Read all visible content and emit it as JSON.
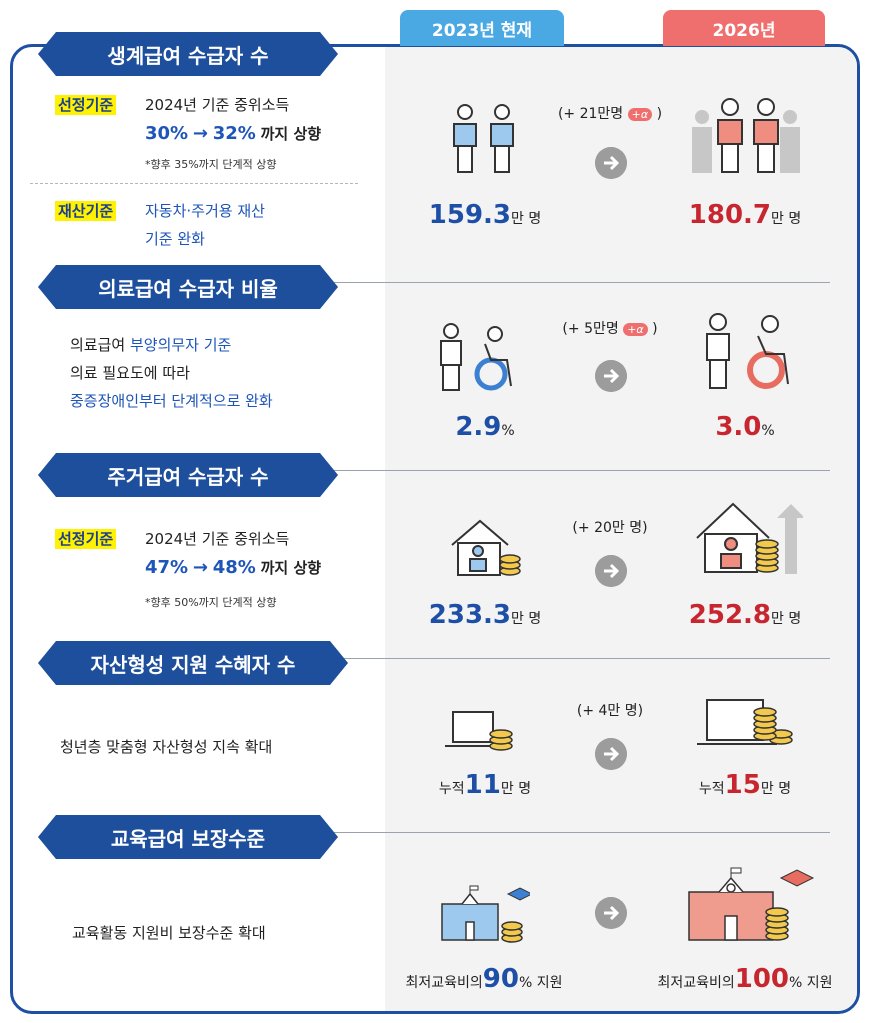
{
  "columns": {
    "now": "2023년 현재",
    "future": "2026년"
  },
  "sections": [
    {
      "title": "생계급여 수급자 수",
      "criteria1": {
        "tag": "선정기준",
        "line1": "2024년 기준 중위소득",
        "from": "30%",
        "arrow": "→",
        "to": "32%",
        "suffix": "까지 상향",
        "note": "*향후 35%까지 단계적 상향"
      },
      "criteria2": {
        "tag": "재산기준",
        "line1": "자동차·주거용 재산",
        "line2": "기준 완화"
      },
      "increase": "(+ 21만명",
      "alpha": "+α",
      "increase_close": ")",
      "now": {
        "num": "159.3",
        "unit": "만 명"
      },
      "future": {
        "num": "180.7",
        "unit": "만 명"
      }
    },
    {
      "title": "의료급여 수급자 비율",
      "desc1_plain": "의료급여 ",
      "desc1_blue": "부양의무자 기준",
      "desc2": "의료 필요도에 따라",
      "desc3": "중증장애인부터 단계적으로 완화",
      "increase": "(+ 5만명",
      "alpha": "+α",
      "increase_close": ")",
      "now": {
        "num": "2.9",
        "unit": "%"
      },
      "future": {
        "num": "3.0",
        "unit": "%"
      }
    },
    {
      "title": "주거급여 수급자 수",
      "criteria1": {
        "tag": "선정기준",
        "line1": "2024년 기준 중위소득",
        "from": "47%",
        "arrow": "→",
        "to": "48%",
        "suffix": "까지 상향",
        "note": "*향후 50%까지 단계적 상향"
      },
      "increase": "(+ 20만 명)",
      "now": {
        "num": "233.3",
        "unit": "만 명"
      },
      "future": {
        "num": "252.8",
        "unit": "만 명"
      }
    },
    {
      "title": "자산형성 지원 수혜자 수",
      "desc1": "청년층 맞춤형 자산형성 지속 확대",
      "increase": "(+ 4만 명)",
      "now": {
        "prefix": "누적",
        "num": "11",
        "unit": "만 명"
      },
      "future": {
        "prefix": "누적",
        "num": "15",
        "unit": "만 명"
      }
    },
    {
      "title": "교육급여 보장수준",
      "desc1": "교육활동 지원비  보장수준 확대",
      "now": {
        "prefix": "최저교육비의",
        "num": "90",
        "unit": "% 지원"
      },
      "future": {
        "prefix": "최저교육비의",
        "num": "100",
        "unit": "% 지원"
      }
    }
  ],
  "colors": {
    "navy": "#1d4f9c",
    "blue_value": "#1e4fa6",
    "red_value": "#c8262e",
    "now_header": "#4aa8e2",
    "future_header": "#ef6f6f"
  }
}
